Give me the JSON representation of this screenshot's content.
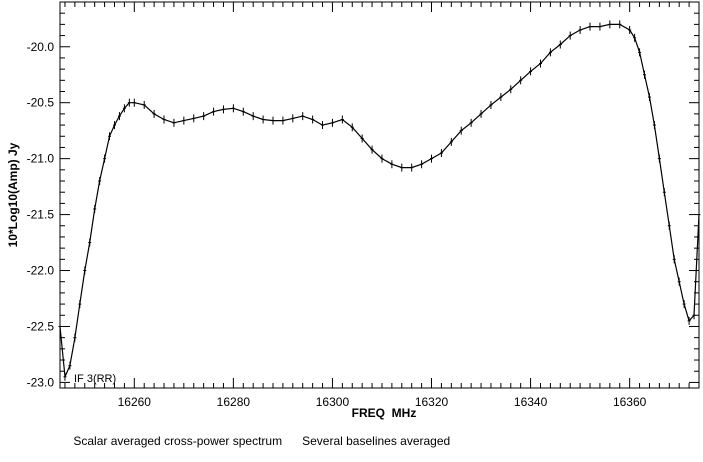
{
  "chart_data": {
    "type": "line",
    "title": "",
    "xlabel": "FREQ  MHz",
    "ylabel": "10*Log10(Amp) Jy",
    "xlim": [
      16245,
      16374
    ],
    "ylim": [
      -23.05,
      -19.6
    ],
    "x_ticks": [
      16260,
      16280,
      16300,
      16320,
      16340,
      16360
    ],
    "x_tick_labels": [
      "16260",
      "16280",
      "16300",
      "16320",
      "16340",
      "16360"
    ],
    "y_ticks": [
      -20.0,
      -20.5,
      -21.0,
      -21.5,
      -22.0,
      -22.5,
      -23.0
    ],
    "y_tick_labels": [
      "-20.0",
      "-20.5",
      "-21.0",
      "-21.5",
      "-22.0",
      "-22.5",
      "-23.0"
    ],
    "grid": false,
    "annotation": "IF 3(RR)",
    "error_bars": true,
    "series": [
      {
        "x": [
          16245.0,
          16246.0,
          16247.0,
          16248.0,
          16249.0,
          16250.0,
          16251.0,
          16252.0,
          16253.0,
          16254.0,
          16255.0,
          16256.0,
          16257.0,
          16258.0,
          16259.0,
          16260.0,
          16262.0,
          16264.0,
          16266.0,
          16268.0,
          16270.0,
          16272.0,
          16274.0,
          16276.0,
          16278.0,
          16280.0,
          16282.0,
          16284.0,
          16286.0,
          16288.0,
          16290.0,
          16292.0,
          16294.0,
          16296.0,
          16298.0,
          16300.0,
          16302.0,
          16304.0,
          16306.0,
          16308.0,
          16310.0,
          16312.0,
          16314.0,
          16316.0,
          16318.0,
          16320.0,
          16322.0,
          16324.0,
          16326.0,
          16328.0,
          16330.0,
          16332.0,
          16334.0,
          16336.0,
          16338.0,
          16340.0,
          16342.0,
          16344.0,
          16346.0,
          16348.0,
          16350.0,
          16352.0,
          16354.0,
          16356.0,
          16358.0,
          16360.0,
          16361.0,
          16362.0,
          16363.0,
          16364.0,
          16365.0,
          16366.0,
          16367.0,
          16368.0,
          16369.0,
          16370.0,
          16371.0,
          16372.0,
          16373.0,
          16374.0
        ],
        "y": [
          -22.5,
          -22.95,
          -22.85,
          -22.6,
          -22.3,
          -22.0,
          -21.75,
          -21.45,
          -21.2,
          -21.0,
          -20.8,
          -20.7,
          -20.62,
          -20.55,
          -20.5,
          -20.5,
          -20.52,
          -20.6,
          -20.65,
          -20.68,
          -20.66,
          -20.64,
          -20.62,
          -20.58,
          -20.56,
          -20.55,
          -20.58,
          -20.62,
          -20.65,
          -20.66,
          -20.66,
          -20.64,
          -20.62,
          -20.65,
          -20.7,
          -20.68,
          -20.65,
          -20.72,
          -20.82,
          -20.92,
          -21.0,
          -21.05,
          -21.08,
          -21.08,
          -21.05,
          -21.0,
          -20.95,
          -20.85,
          -20.75,
          -20.68,
          -20.6,
          -20.52,
          -20.45,
          -20.38,
          -20.3,
          -20.22,
          -20.15,
          -20.05,
          -19.98,
          -19.9,
          -19.85,
          -19.82,
          -19.82,
          -19.8,
          -19.8,
          -19.85,
          -19.92,
          -20.05,
          -20.25,
          -20.45,
          -20.7,
          -21.0,
          -21.3,
          -21.6,
          -21.9,
          -22.1,
          -22.3,
          -22.45,
          -22.4,
          -21.5
        ]
      }
    ]
  },
  "caption": {
    "left": "Scalar averaged cross-power spectrum",
    "right": "Several baselines averaged"
  }
}
